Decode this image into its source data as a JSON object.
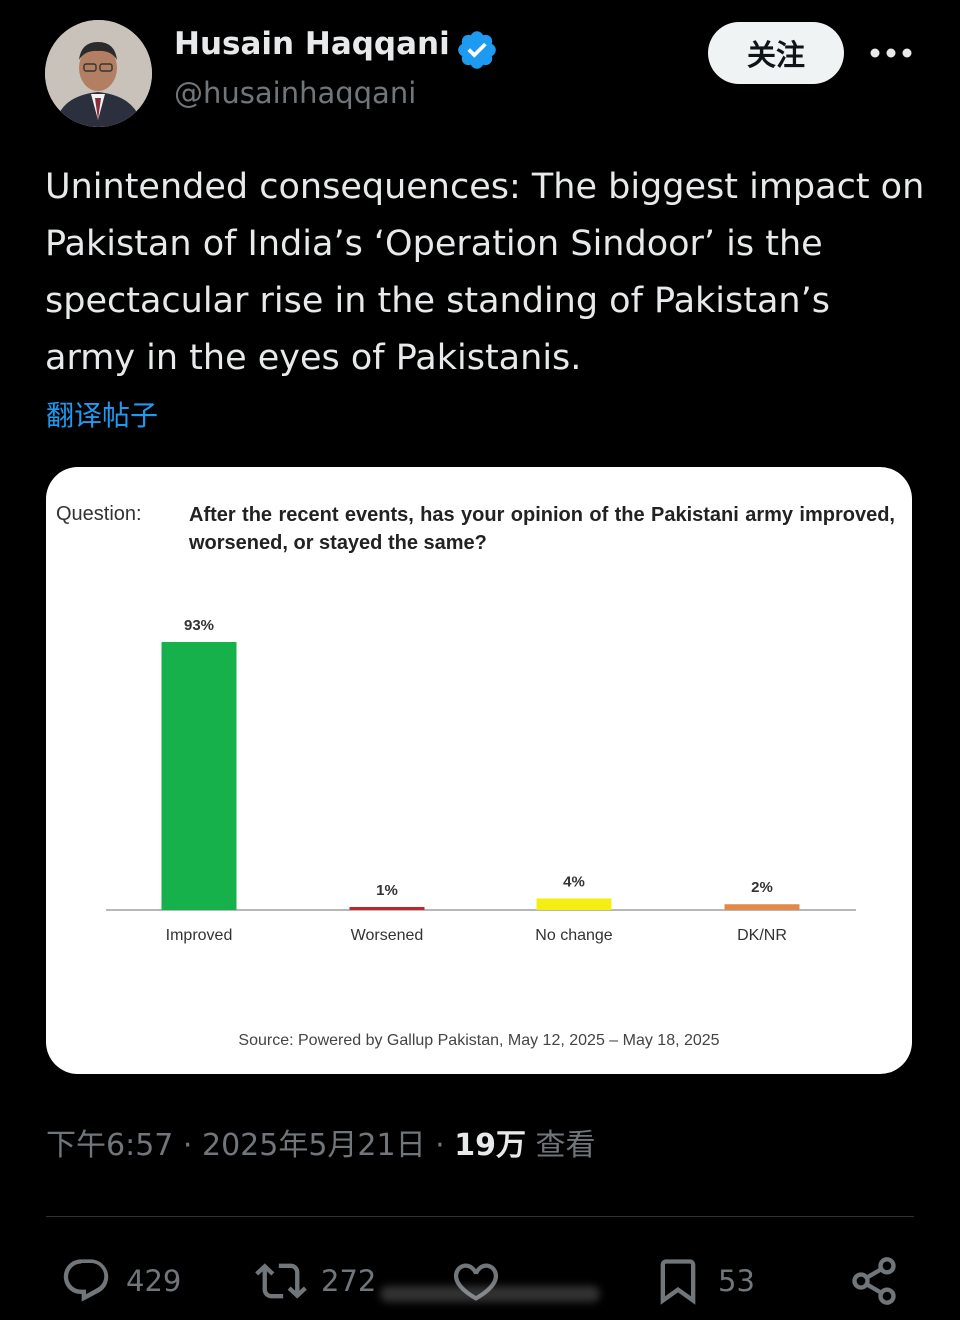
{
  "author": {
    "name": "Husain Haqqani",
    "handle": "@husainhaqqani",
    "verified": true,
    "verified_color": "#1d9bf0"
  },
  "follow_label": "关注",
  "tweet_text": "Unintended consequences: The biggest impact on Pakistan of India’s ‘Operation Sindoor’ is the spectacular rise in the standing of Pakistan’s army in the eyes of Pakistanis.",
  "translate_label": "翻译帖子",
  "card": {
    "question_label": "Question:",
    "question_text": "After the recent events, has your opinion of the Pakistani army improved, worsened, or stayed the same?",
    "source": "Source: Powered by Gallup Pakistan, May 12, 2025 – May 18, 2025"
  },
  "chart_data": {
    "type": "bar",
    "title": "After the recent events, has your opinion of the Pakistani army improved, worsened, or stayed the same?",
    "categories": [
      "Improved",
      "Worsened",
      "No change",
      "DK/NR"
    ],
    "values": [
      93,
      1,
      4,
      2
    ],
    "value_labels": [
      "93%",
      "1%",
      "4%",
      "2%"
    ],
    "colors": [
      "#17b14c",
      "#c0262c",
      "#f5ee13",
      "#e0894a"
    ],
    "unit": "%",
    "ylim": [
      0,
      93
    ],
    "grid": false,
    "xlabel": "",
    "ylabel": ""
  },
  "meta": {
    "time": "下午6:57",
    "sep1": " · ",
    "date": "2025年5月21日",
    "sep2": " · ",
    "views": "19万",
    "views_label": " 查看"
  },
  "actions": {
    "replies": "429",
    "reposts": "272",
    "bookmarks": "53"
  }
}
